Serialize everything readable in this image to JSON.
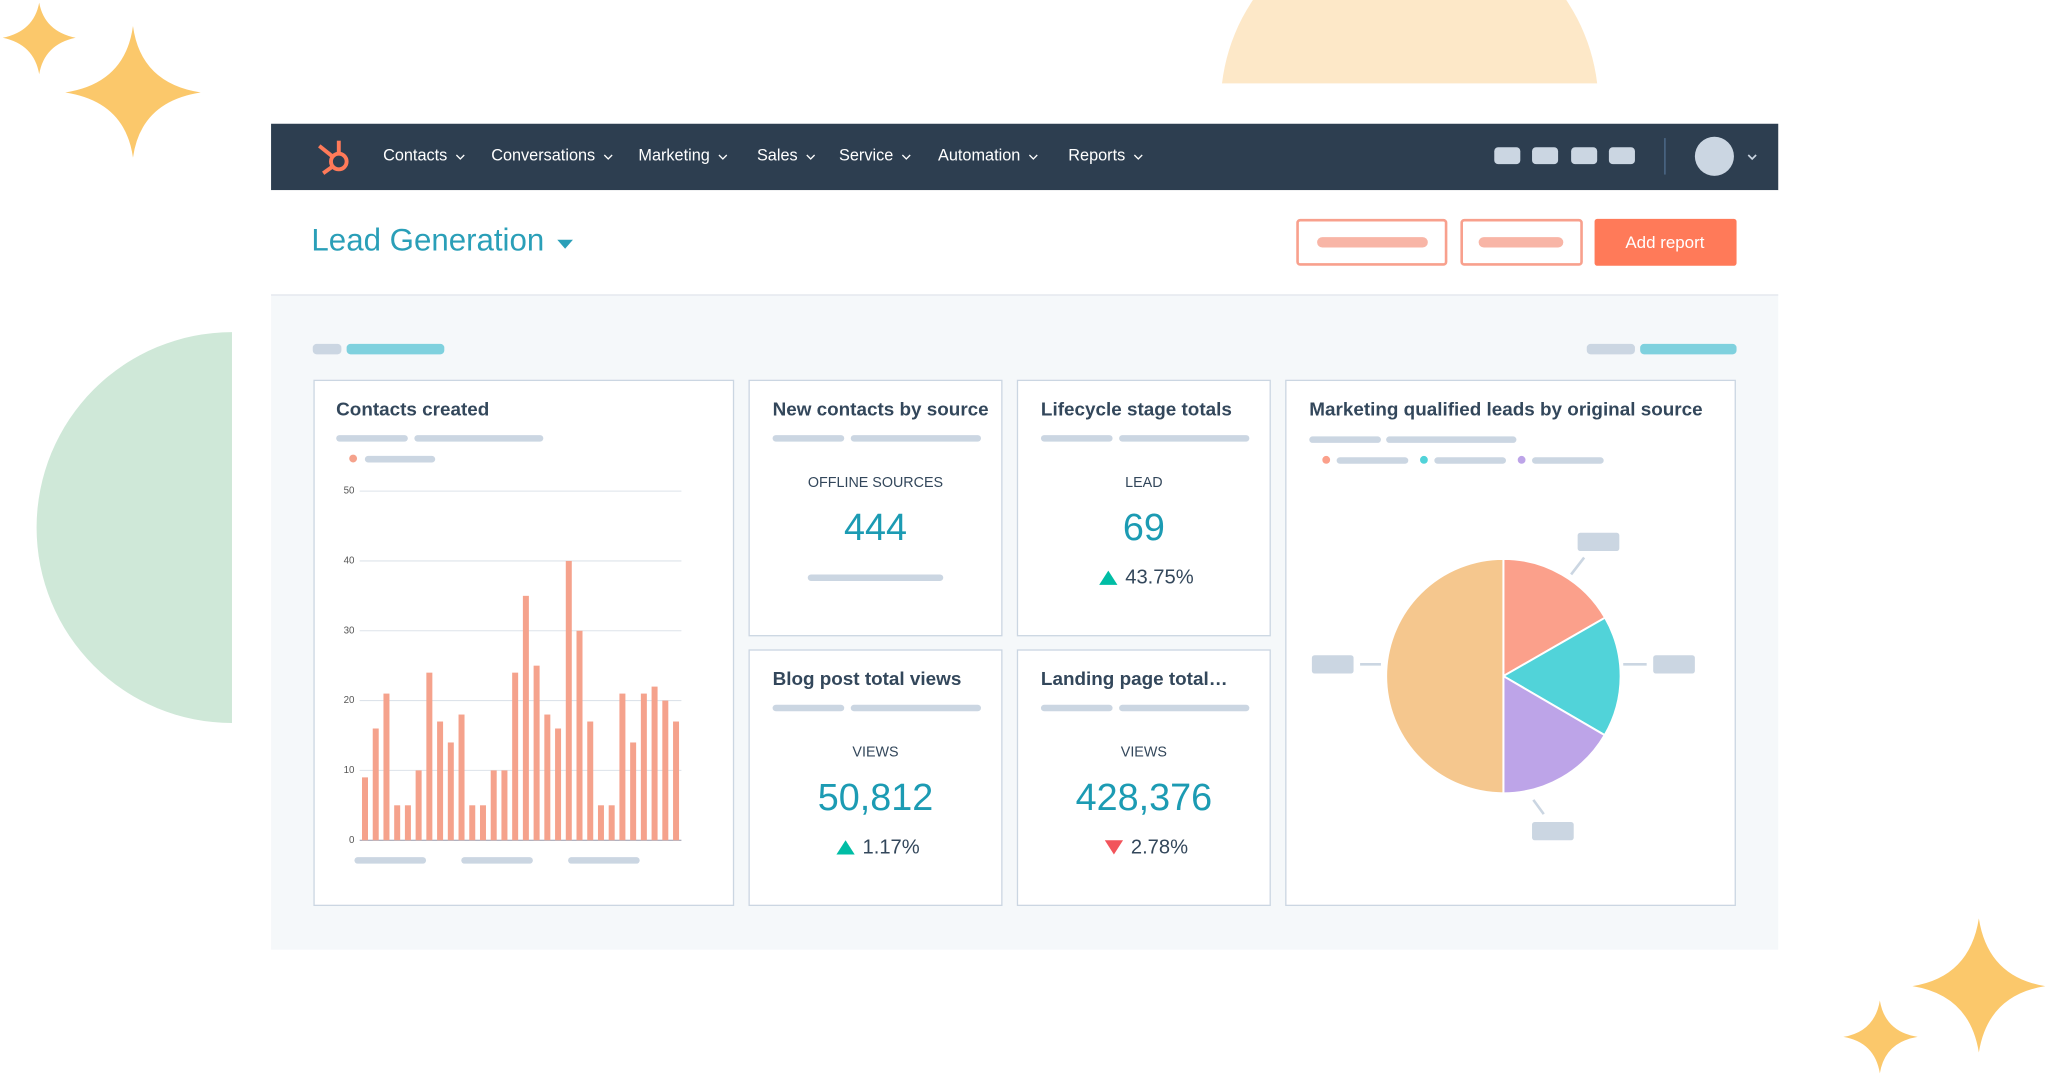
{
  "nav_items": [
    "Contacts",
    "Conversations",
    "Marketing",
    "Sales",
    "Service",
    "Automation",
    "Reports"
  ],
  "page_title": "Lead Generation",
  "add_button": "Add report",
  "kpis": [
    {
      "title": "New contacts by source",
      "label": "OFFLINE SOURCES",
      "value": "444"
    },
    {
      "title": "Lifecycle stage totals",
      "label": "LEAD",
      "value": "69",
      "change": "43.75%",
      "direction": "up"
    },
    {
      "title": "Blog post total views",
      "label": "VIEWS",
      "value": "50,812",
      "change": "1.17%",
      "direction": "up"
    },
    {
      "title": "Landing page total…",
      "label": "VIEWS",
      "value": "428,376",
      "change": "2.78%",
      "direction": "down"
    }
  ],
  "chart_data": [
    {
      "type": "bar",
      "title": "Contacts created",
      "values": [
        9,
        16,
        21,
        5,
        5,
        10,
        24,
        17,
        14,
        18,
        5,
        5,
        10,
        10,
        24,
        35,
        25,
        18,
        16,
        40,
        30,
        17,
        5,
        5,
        21,
        14,
        21,
        22,
        20,
        17
      ],
      "color": "#f5a28c",
      "ylim": [
        0,
        50
      ],
      "yticks": [
        0,
        10,
        20,
        30,
        40,
        50
      ],
      "grid": true
    },
    {
      "type": "pie",
      "title": "Marketing qualified leads by original source",
      "values": [
        16.7,
        16.7,
        16.6,
        50
      ],
      "colors": [
        "#fba08b",
        "#51d3d9",
        "#bda4e8",
        "#f5c78e"
      ]
    }
  ]
}
